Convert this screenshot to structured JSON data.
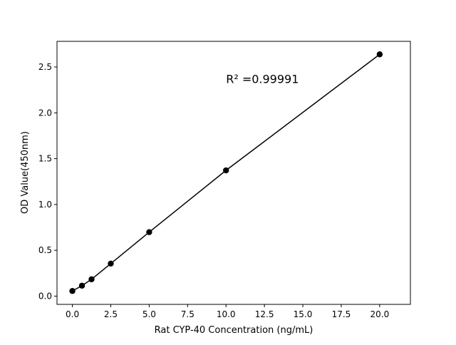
{
  "chart_data": {
    "type": "line",
    "title": "",
    "xlabel": "Rat CYP-40 Concentration (ng/mL)",
    "ylabel": "OD Value(450nm)",
    "xlim": [
      -1,
      22
    ],
    "ylim": [
      -0.09,
      2.78
    ],
    "xticks": [
      0.0,
      2.5,
      5.0,
      7.5,
      10.0,
      12.5,
      15.0,
      17.5,
      20.0
    ],
    "xtick_labels": [
      "0.0",
      "2.5",
      "5.0",
      "7.5",
      "10.0",
      "12.5",
      "15.0",
      "17.5",
      "20.0"
    ],
    "yticks": [
      0.0,
      0.5,
      1.0,
      1.5,
      2.0,
      2.5
    ],
    "ytick_labels": [
      "0.0",
      "0.5",
      "1.0",
      "1.5",
      "2.0",
      "2.5"
    ],
    "grid": false,
    "series": [
      {
        "x": [
          0,
          0.625,
          1.25,
          2.5,
          5,
          10,
          20
        ],
        "y": [
          0.056,
          0.114,
          0.184,
          0.355,
          0.698,
          1.372,
          2.638
        ],
        "color": "#000000",
        "marker": "circle"
      }
    ],
    "annotations": [
      {
        "text": "R² =0.99991",
        "x": 10,
        "y": 2.37
      }
    ]
  }
}
